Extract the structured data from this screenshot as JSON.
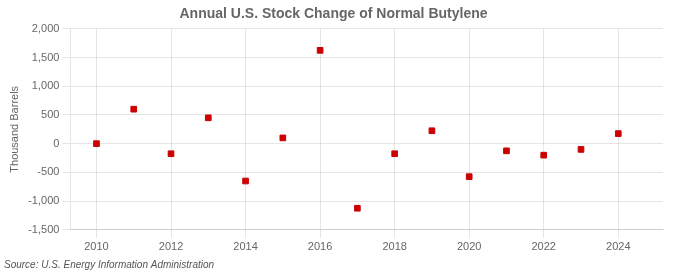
{
  "chart_data": {
    "type": "scatter",
    "title": "Annual U.S. Stock Change of Normal Butylene",
    "ylabel": "Thousand Barrels",
    "annotations": [
      "Source: U.S. Energy Information Administration"
    ],
    "x": [
      2010,
      2011,
      2012,
      2013,
      2014,
      2015,
      2016,
      2017,
      2018,
      2019,
      2020,
      2021,
      2022,
      2023,
      2024
    ],
    "values": [
      0,
      600,
      -175,
      450,
      -650,
      100,
      1625,
      -1125,
      -175,
      225,
      -575,
      -125,
      -200,
      -100,
      175
    ],
    "color": "#cc0000",
    "marker": "square",
    "xlim": [
      2009.3,
      2025.2
    ],
    "xticks": [
      2010,
      2012,
      2014,
      2016,
      2018,
      2020,
      2022,
      2024
    ],
    "ylim": [
      -1500,
      2000
    ],
    "yticks": [
      {
        "value": -1500,
        "label": "-1,500"
      },
      {
        "value": -1000,
        "label": "-1,000"
      },
      -500,
      0,
      500,
      {
        "value": 1000,
        "label": "1,000"
      },
      {
        "value": 1500,
        "label": "1,500"
      },
      {
        "value": 2000,
        "label": "2,000"
      }
    ],
    "grid": true
  }
}
